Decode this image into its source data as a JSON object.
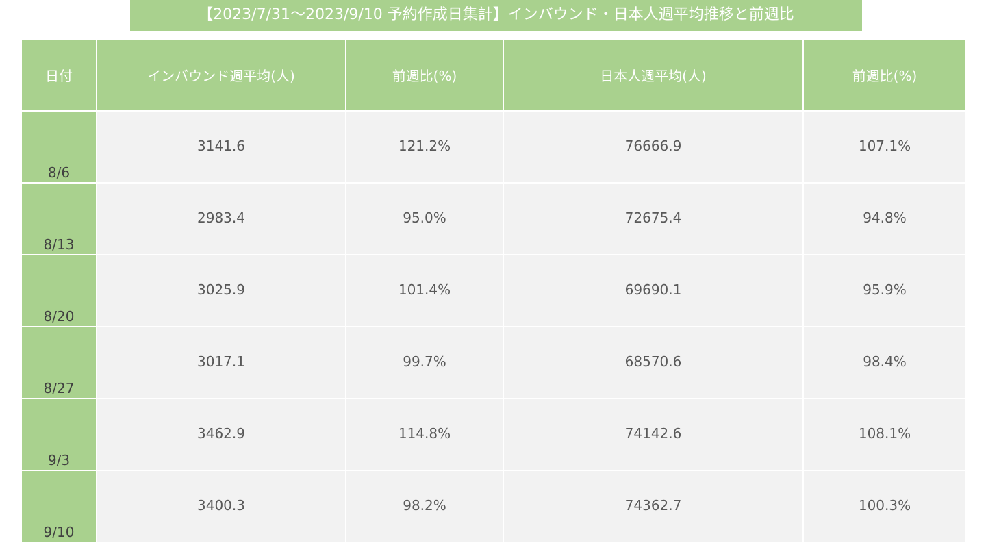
{
  "chart_data": {
    "type": "table",
    "title": "【2023/7/31～2023/9/10 予約作成日集計】インバウンド・日本人週平均推移と前週比",
    "columns": [
      "日付",
      "インバウンド週平均(人)",
      "前週比(%)",
      "日本人週平均(人)",
      "前週比(%)"
    ],
    "rows": [
      [
        "8/6",
        "3141.6",
        "121.2%",
        "76666.9",
        "107.1%"
      ],
      [
        "8/13",
        "2983.4",
        "95.0%",
        "72675.4",
        "94.8%"
      ],
      [
        "8/20",
        "3025.9",
        "101.4%",
        "69690.1",
        "95.9%"
      ],
      [
        "8/27",
        "3017.1",
        "99.7%",
        "68570.6",
        "98.4%"
      ],
      [
        "9/3",
        "3462.9",
        "114.8%",
        "74142.6",
        "108.1%"
      ],
      [
        "9/10",
        "3400.3",
        "98.2%",
        "74362.7",
        "100.3%"
      ]
    ]
  },
  "colors": {
    "header_green": "#a9d18e",
    "cell_gray": "#f2f2f2"
  }
}
